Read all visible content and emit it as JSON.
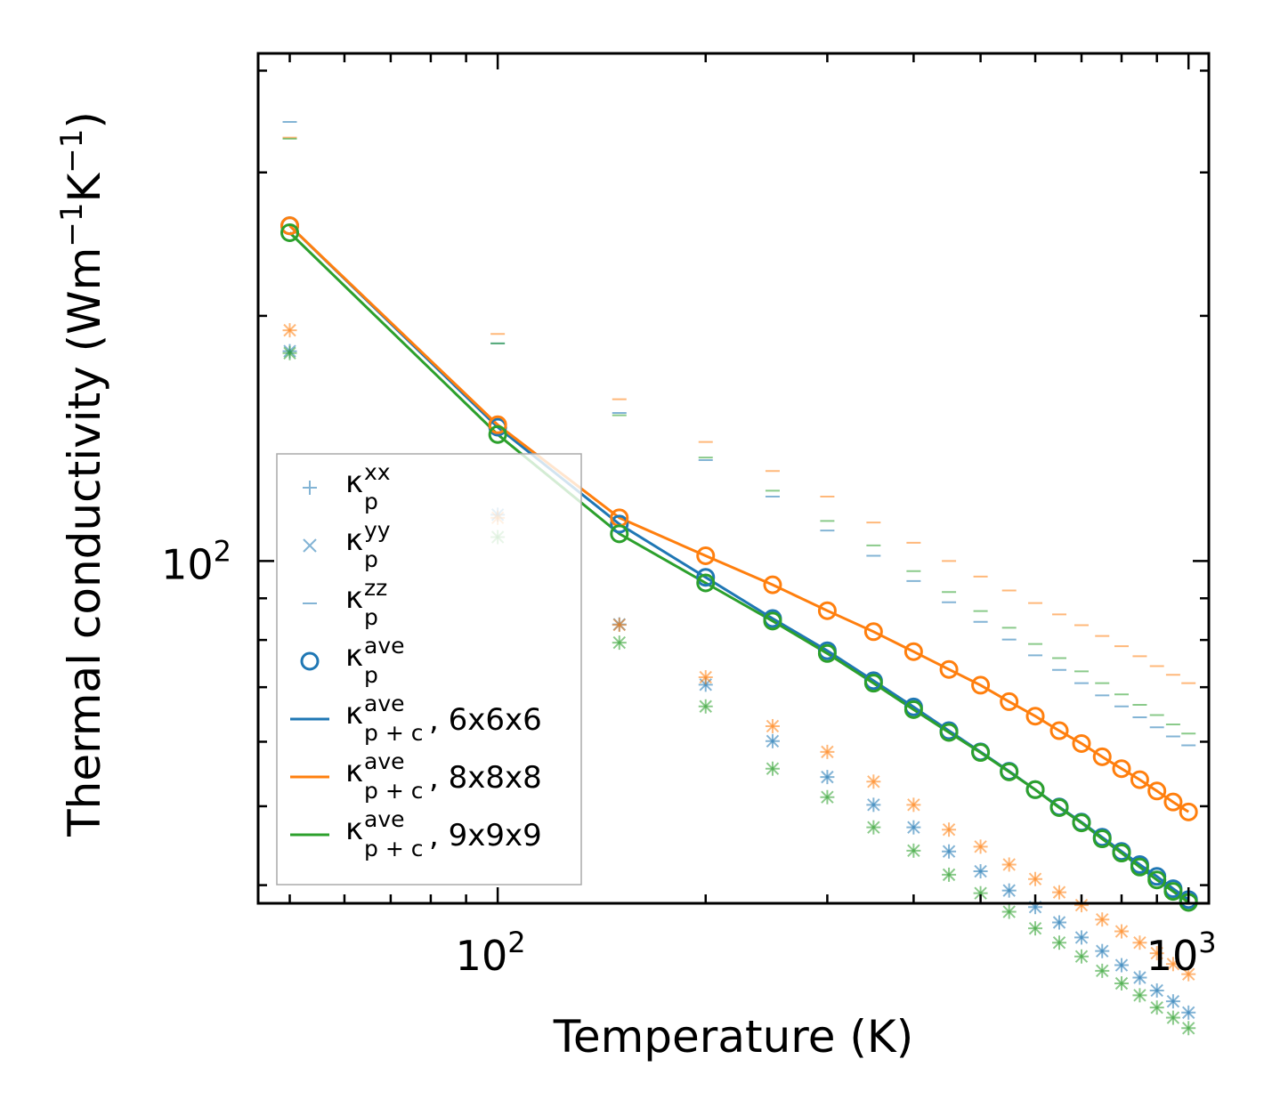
{
  "chart_data": {
    "type": "scatter",
    "xscale": "log",
    "yscale": "log",
    "xlabel": "Temperature (K)",
    "ylabel_main": "Thermal conductivity (Wm",
    "ylabel_sup1": "−1",
    "ylabel_mid": "K",
    "ylabel_sup2": "−1",
    "ylabel_end": ")",
    "xlim": [
      45,
      1070
    ],
    "ylim": [
      38,
      420
    ],
    "x_ticks": [
      {
        "value": 100,
        "base": "10",
        "exp": "2"
      },
      {
        "value": 1000,
        "base": "10",
        "exp": "3"
      }
    ],
    "y_ticks": [
      {
        "value": 100,
        "base": "10",
        "exp": "2"
      }
    ],
    "x": [
      50,
      100,
      150,
      200,
      250,
      300,
      350,
      400,
      450,
      500,
      550,
      600,
      650,
      700,
      750,
      800,
      850,
      900,
      950,
      1000
    ],
    "colors": {
      "6x6x6": "#1f77b4",
      "8x8x8": "#ff7f0e",
      "9x9x9": "#2ca02c"
    },
    "series": [
      {
        "name": "6x6x6",
        "color": "#1f77b4",
        "ave": [
          258,
          146,
          111,
          95.5,
          85.0,
          77.6,
          71.3,
          66.2,
          61.9,
          58.3,
          55.2,
          52.4,
          49.9,
          47.8,
          45.8,
          44.0,
          42.4,
          41.0,
          39.6,
          38.4
        ],
        "xx": [
          181,
          114,
          83.6,
          70.5,
          60.1,
          54.3,
          50.2,
          47.1,
          44.0,
          41.6,
          39.4,
          37.6,
          36.0,
          34.5,
          33.2,
          31.9,
          30.8,
          29.7,
          28.8,
          27.9
        ],
        "yy": [
          181,
          114,
          83.6,
          70.5,
          60.1,
          54.3,
          50.2,
          47.1,
          44.0,
          41.6,
          39.4,
          37.6,
          36.0,
          34.5,
          33.2,
          31.9,
          30.8,
          29.7,
          28.8,
          27.9
        ],
        "zz": [
          346,
          185,
          152,
          133,
          120,
          109,
          101.5,
          94.5,
          89.0,
          84.2,
          80.1,
          76.6,
          73.5,
          70.8,
          68.4,
          66.3,
          64.3,
          62.5,
          60.9,
          59.4
        ]
      },
      {
        "name": "8x8x8",
        "color": "#ff7f0e",
        "ave": [
          258,
          147,
          113,
          101.5,
          93.5,
          86.9,
          81.9,
          77.4,
          73.6,
          70.4,
          67.2,
          64.5,
          61.9,
          59.7,
          57.5,
          55.6,
          53.9,
          52.2,
          50.6,
          49.2
        ],
        "xx": [
          192,
          113,
          83.5,
          72.0,
          62.7,
          58.3,
          53.6,
          50.2,
          46.8,
          44.6,
          42.4,
          40.7,
          39.2,
          37.8,
          36.3,
          35.1,
          34.0,
          33.0,
          32.0,
          31.1
        ],
        "yy": [
          192,
          113,
          83.5,
          72.0,
          62.7,
          58.3,
          53.6,
          50.2,
          46.8,
          44.6,
          42.4,
          40.7,
          39.2,
          37.8,
          36.3,
          35.1,
          34.0,
          33.0,
          32.0,
          31.1
        ],
        "zz": [
          331,
          190,
          158,
          140,
          129,
          120,
          111.5,
          105.3,
          100.0,
          95.7,
          92.0,
          88.8,
          86.0,
          83.4,
          80.9,
          78.6,
          76.4,
          74.3,
          72.5,
          70.8
        ]
      },
      {
        "name": "9x9x9",
        "color": "#2ca02c",
        "ave": [
          253,
          143,
          108,
          94.0,
          84.4,
          77.0,
          70.8,
          65.7,
          61.6,
          58.2,
          55.1,
          52.4,
          49.8,
          47.7,
          45.6,
          43.8,
          42.1,
          40.6,
          39.3,
          38.1
        ],
        "xx": [
          180,
          107,
          79.4,
          66.3,
          55.6,
          51.3,
          47.1,
          44.1,
          41.2,
          39.1,
          37.1,
          35.4,
          34.0,
          32.7,
          31.4,
          30.3,
          29.3,
          28.3,
          27.5,
          26.7
        ],
        "yy": [
          180,
          107,
          79.4,
          66.3,
          55.6,
          51.3,
          47.1,
          44.1,
          41.2,
          39.1,
          37.1,
          35.4,
          34.0,
          32.7,
          31.4,
          30.3,
          29.3,
          28.3,
          27.5,
          26.7
        ],
        "zz": [
          330,
          185,
          151,
          134,
          122,
          112,
          104.5,
          97.2,
          91.6,
          86.8,
          82.8,
          79.1,
          76.0,
          73.2,
          70.8,
          68.6,
          66.6,
          64.7,
          63.0,
          61.4
        ]
      }
    ],
    "legend": {
      "position": "lower-left",
      "entries": [
        {
          "symbol": "plus",
          "color": "#1f77b4",
          "base": "κ",
          "sup": "xx",
          "sub": "p",
          "suffix": ""
        },
        {
          "symbol": "x",
          "color": "#1f77b4",
          "base": "κ",
          "sup": "yy",
          "sub": "p",
          "suffix": ""
        },
        {
          "symbol": "hline",
          "color": "#1f77b4",
          "base": "κ",
          "sup": "zz",
          "sub": "p",
          "suffix": ""
        },
        {
          "symbol": "circle",
          "color": "#1f77b4",
          "base": "κ",
          "sup": "ave",
          "sub": "p",
          "suffix": ""
        },
        {
          "symbol": "line",
          "color": "#1f77b4",
          "base": "κ",
          "sup": "ave",
          "sub": "p + c",
          "suffix": ", 6x6x6"
        },
        {
          "symbol": "line",
          "color": "#ff7f0e",
          "base": "κ",
          "sup": "ave",
          "sub": "p + c",
          "suffix": ", 8x8x8"
        },
        {
          "symbol": "line",
          "color": "#2ca02c",
          "base": "κ",
          "sup": "ave",
          "sub": "p + c",
          "suffix": ", 9x9x9"
        }
      ]
    }
  }
}
